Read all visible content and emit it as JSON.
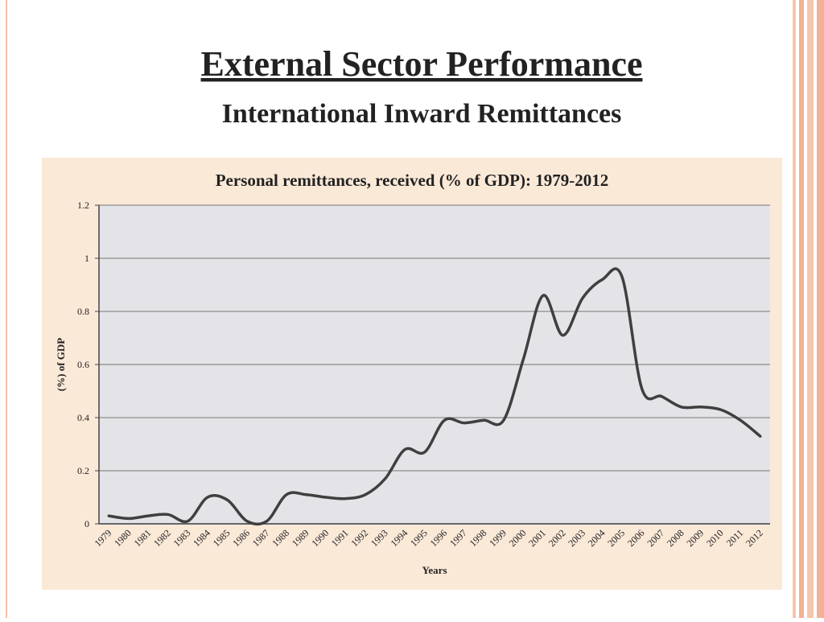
{
  "slide": {
    "title": "External Sector Performance",
    "subtitle": "International Inward Remittances"
  },
  "chart_data": {
    "type": "line",
    "title": "Personal remittances, received (% of GDP): 1979-2012",
    "x_label": "Years",
    "y_label": "(%) of GDP",
    "categories": [
      "1979",
      "1980",
      "1981",
      "1982",
      "1983",
      "1984",
      "1985",
      "1986",
      "1987",
      "1988",
      "1989",
      "1990",
      "1991",
      "1992",
      "1993",
      "1994",
      "1995",
      "1996",
      "1997",
      "1998",
      "1999",
      "2000",
      "2001",
      "2002",
      "2003",
      "2004",
      "2005",
      "2006",
      "2007",
      "2008",
      "2009",
      "2010",
      "2011",
      "2012"
    ],
    "values": [
      0.03,
      0.02,
      0.03,
      0.035,
      0.01,
      0.1,
      0.09,
      0.01,
      0.01,
      0.11,
      0.11,
      0.1,
      0.095,
      0.11,
      0.17,
      0.28,
      0.27,
      0.39,
      0.38,
      0.39,
      0.39,
      0.62,
      0.86,
      0.71,
      0.85,
      0.92,
      0.93,
      0.51,
      0.48,
      0.44,
      0.44,
      0.43,
      0.39,
      0.33
    ],
    "color": "#3f3f3f",
    "ylim": [
      0,
      1.2
    ],
    "yticks": [
      0,
      0.2,
      0.4,
      0.6,
      0.8,
      1,
      1.2
    ],
    "grid": true
  }
}
